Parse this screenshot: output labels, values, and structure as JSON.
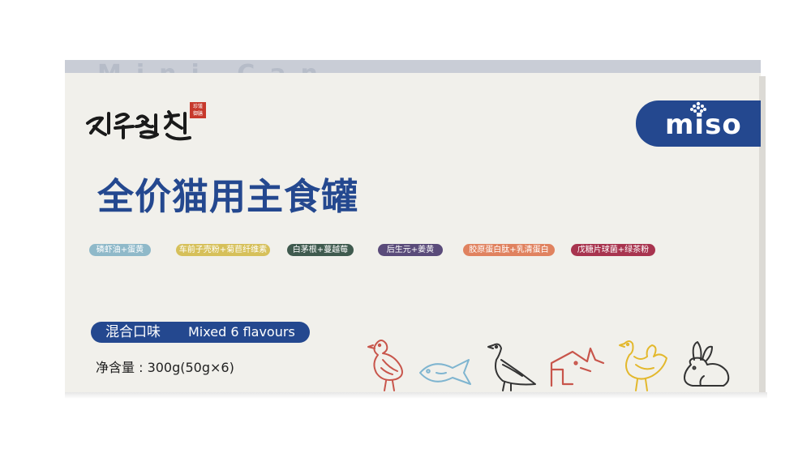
{
  "box": {
    "top_text": "Mini Can"
  },
  "brand": {
    "name": "진수성찬",
    "seal": "珍馐\n御膳"
  },
  "logo": {
    "text": "miso"
  },
  "product": {
    "title": "全价猫用主食罐"
  },
  "tags": [
    {
      "label": "磷虾油+蛋黄",
      "color": "#8fb9c9"
    },
    {
      "label": "车前子壳粉+菊苣纤维素",
      "color": "#d6c05a"
    },
    {
      "label": "白茅根+蔓越莓",
      "color": "#3f5a4e"
    },
    {
      "label": "后生元+姜黄",
      "color": "#5a4b7a"
    },
    {
      "label": "胶原蛋白肽+乳清蛋白",
      "color": "#e0825f"
    },
    {
      "label": "戊糖片球菌+绿茶粉",
      "color": "#a8344f"
    }
  ],
  "flavour": {
    "cn": "混合口味",
    "en": "Mixed 6 flavours"
  },
  "net_weight": "净含量 : 300g(50g×6)",
  "animals": [
    {
      "icon": "quail-icon",
      "color": "#c8554b"
    },
    {
      "icon": "fish-icon",
      "color": "#7fb5d0"
    },
    {
      "icon": "pigeon-icon",
      "color": "#333333"
    },
    {
      "icon": "duck-head-icon",
      "color": "#c8554b"
    },
    {
      "icon": "turkey-icon",
      "color": "#e3b82c"
    },
    {
      "icon": "rabbit-icon",
      "color": "#333333"
    }
  ],
  "colors": {
    "primary": "#24488f",
    "background": "#f1f0eb"
  }
}
